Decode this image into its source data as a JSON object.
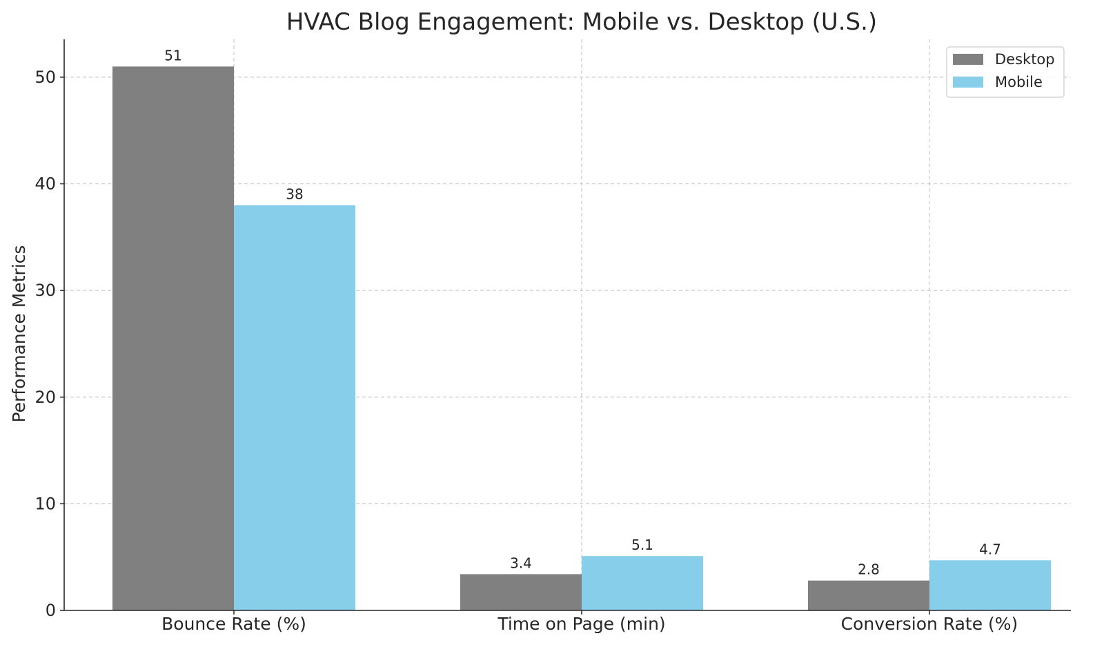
{
  "chart_data": {
    "type": "bar",
    "title": "HVAC Blog Engagement: Mobile vs. Desktop (U.S.)",
    "xlabel": "",
    "ylabel": "Performance Metrics",
    "categories": [
      "Bounce Rate (%)",
      "Time on Page (min)",
      "Conversion Rate (%)"
    ],
    "series": [
      {
        "name": "Desktop",
        "values": [
          51,
          3.4,
          2.8
        ],
        "labels": [
          "51",
          "3.4",
          "2.8"
        ],
        "color": "#808080"
      },
      {
        "name": "Mobile",
        "values": [
          38,
          5.1,
          4.7
        ],
        "labels": [
          "38",
          "5.1",
          "4.7"
        ],
        "color": "#87ceeb"
      }
    ],
    "yticks": [
      0,
      10,
      20,
      30,
      40,
      50
    ],
    "ylim": [
      0,
      53.55
    ],
    "grid": true,
    "legend_position": "top-right"
  }
}
